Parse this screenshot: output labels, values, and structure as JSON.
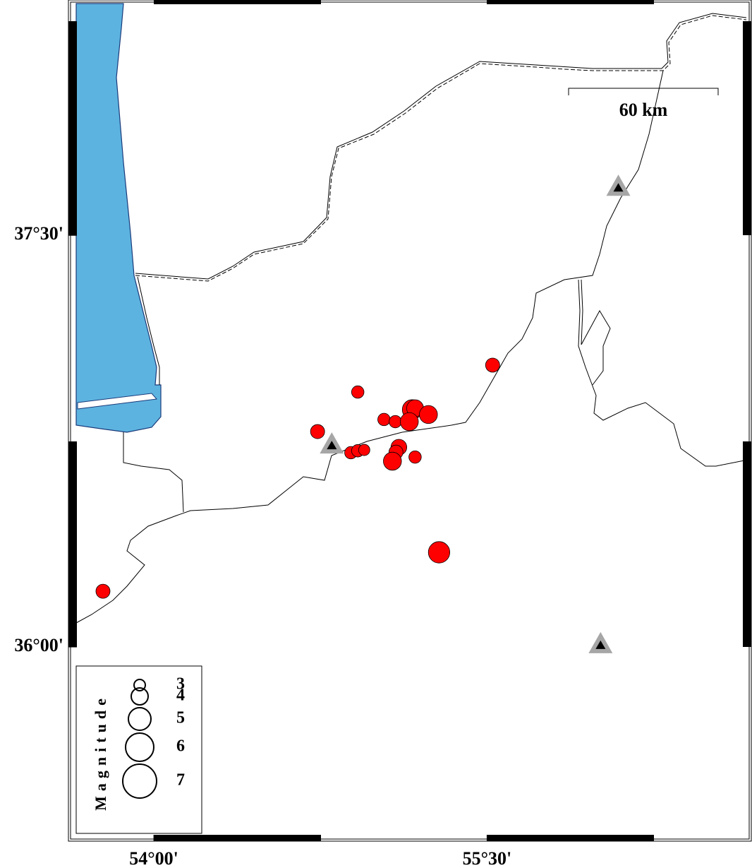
{
  "map": {
    "xlim": [
      53.625,
      56.68
    ],
    "ylim": [
      35.3,
      38.35
    ],
    "xticks": [
      {
        "value": 54,
        "label": "54°00'"
      },
      {
        "value": 55.5,
        "label": "55°30'"
      }
    ],
    "yticks": [
      {
        "value": 36,
        "label": "36°00'"
      },
      {
        "value": 37.5,
        "label": "37°30'"
      }
    ],
    "events": {
      "color": "#ff0000",
      "lon": [
        55.525,
        54.918,
        54.737,
        55.036,
        55.087,
        55.163,
        55.176,
        55.236,
        55.15,
        54.887,
        54.918,
        54.947,
        55.103,
        55.09,
        55.074,
        55.176,
        55.284,
        53.771
      ],
      "lat": [
        37.027,
        36.929,
        36.785,
        36.829,
        36.821,
        36.865,
        36.87,
        36.847,
        36.821,
        36.708,
        36.715,
        36.718,
        36.728,
        36.71,
        36.677,
        36.692,
        36.345,
        36.203
      ],
      "magnitude": [
        3.5,
        3.2,
        3.5,
        3.2,
        3.2,
        4.5,
        4.0,
        4.2,
        4.2,
        3.2,
        3.2,
        3.0,
        3.8,
        3.5,
        4.2,
        3.2,
        4.8,
        3.5
      ]
    },
    "stations": {
      "lon": [
        54.801,
        56.091,
        56.011
      ],
      "lat": [
        36.736,
        37.675,
        36.008
      ]
    },
    "scale_bar": {
      "label": "60 km"
    },
    "legend": {
      "title": "Magnitude",
      "magnitudes": [
        3,
        4,
        5,
        6,
        7
      ]
    }
  }
}
